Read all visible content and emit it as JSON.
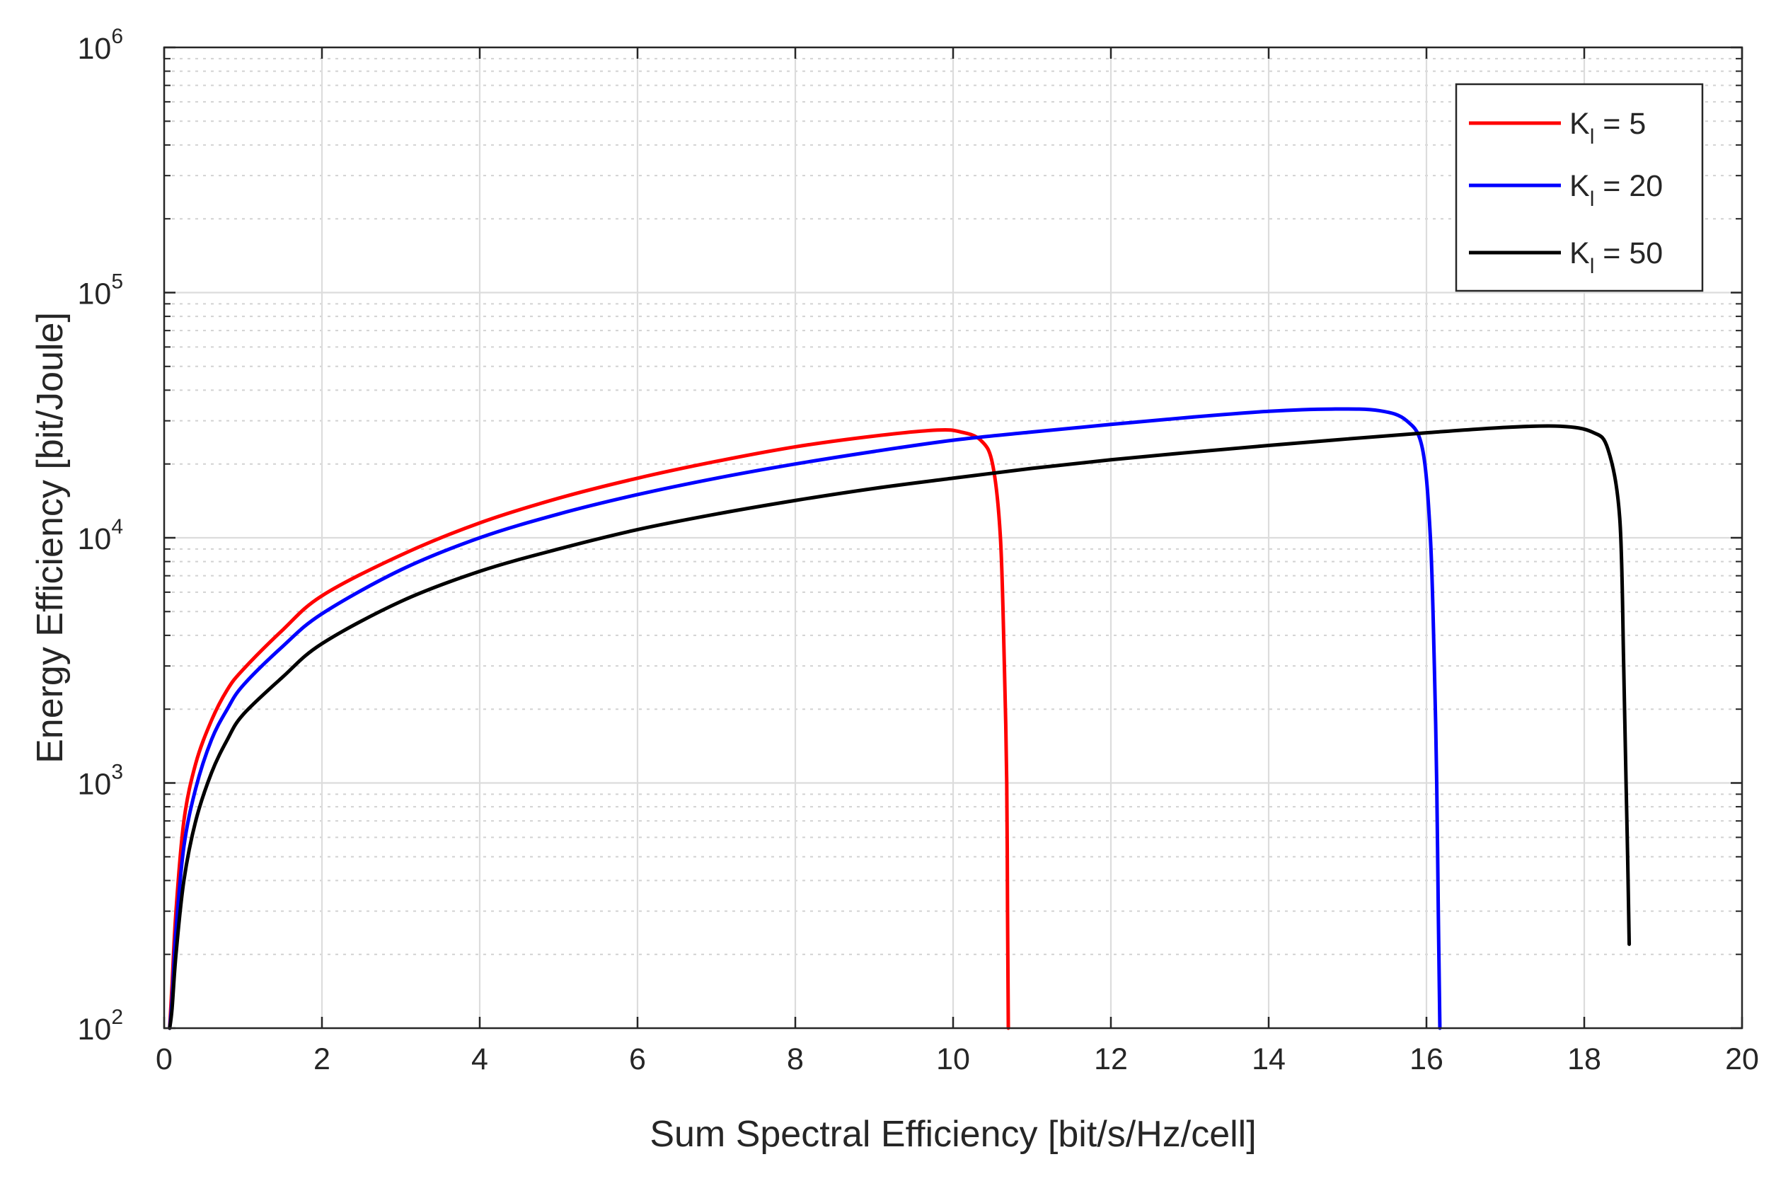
{
  "chart_data": {
    "type": "line",
    "title": "",
    "xlabel": "Sum Spectral Efficiency [bit/s/Hz/cell]",
    "ylabel": "Energy Efficiency [bit/Joule]",
    "xlim": [
      0,
      20
    ],
    "ylim": [
      100,
      1000000
    ],
    "yscale": "log",
    "grid": true,
    "legend_position": "top-right",
    "x_ticks": [
      "0",
      "2",
      "4",
      "6",
      "8",
      "10",
      "12",
      "14",
      "16",
      "18",
      "20"
    ],
    "y_ticks": [
      {
        "base": "10",
        "exp": "2"
      },
      {
        "base": "10",
        "exp": "3"
      },
      {
        "base": "10",
        "exp": "4"
      },
      {
        "base": "10",
        "exp": "5"
      },
      {
        "base": "10",
        "exp": "6"
      }
    ],
    "series": [
      {
        "name": "K_l = 5",
        "legend": {
          "prefix": "K",
          "sub": "l",
          "suffix": " = 5"
        },
        "color": "#ff0000",
        "points": [
          [
            0.07,
            100
          ],
          [
            0.1,
            150
          ],
          [
            0.15,
            300
          ],
          [
            0.25,
            700
          ],
          [
            0.4,
            1200
          ],
          [
            0.6,
            1800
          ],
          [
            0.8,
            2400
          ],
          [
            1,
            2900
          ],
          [
            1.5,
            4200
          ],
          [
            2,
            5800
          ],
          [
            3,
            8500
          ],
          [
            4,
            11500
          ],
          [
            5,
            14500
          ],
          [
            6,
            17500
          ],
          [
            7,
            20500
          ],
          [
            8,
            23500
          ],
          [
            9,
            26000
          ],
          [
            9.8,
            27500
          ],
          [
            10.1,
            27000
          ],
          [
            10.35,
            25000
          ],
          [
            10.5,
            20000
          ],
          [
            10.6,
            10000
          ],
          [
            10.65,
            3000
          ],
          [
            10.68,
            1000
          ],
          [
            10.69,
            300
          ],
          [
            10.7,
            100
          ]
        ]
      },
      {
        "name": "K_l = 20",
        "legend": {
          "prefix": "K",
          "sub": "l",
          "suffix": " = 20"
        },
        "color": "#0000ff",
        "points": [
          [
            0.07,
            100
          ],
          [
            0.1,
            130
          ],
          [
            0.15,
            250
          ],
          [
            0.25,
            550
          ],
          [
            0.4,
            950
          ],
          [
            0.6,
            1500
          ],
          [
            0.8,
            2000
          ],
          [
            1,
            2500
          ],
          [
            1.5,
            3600
          ],
          [
            2,
            4900
          ],
          [
            3,
            7400
          ],
          [
            4,
            10000
          ],
          [
            5,
            12500
          ],
          [
            6,
            15000
          ],
          [
            7,
            17500
          ],
          [
            8,
            20000
          ],
          [
            9,
            22500
          ],
          [
            10,
            25000
          ],
          [
            11,
            27000
          ],
          [
            12,
            29000
          ],
          [
            13,
            31000
          ],
          [
            14,
            32800
          ],
          [
            14.8,
            33500
          ],
          [
            15.4,
            33000
          ],
          [
            15.75,
            30000
          ],
          [
            15.95,
            23000
          ],
          [
            16.05,
            10000
          ],
          [
            16.1,
            3000
          ],
          [
            16.13,
            1000
          ],
          [
            16.15,
            300
          ],
          [
            16.17,
            100
          ]
        ]
      },
      {
        "name": "K_l = 50",
        "legend": {
          "prefix": "K",
          "sub": "l",
          "suffix": " = 50"
        },
        "color": "#000000",
        "points": [
          [
            0.07,
            100
          ],
          [
            0.1,
            120
          ],
          [
            0.15,
            200
          ],
          [
            0.25,
            400
          ],
          [
            0.4,
            700
          ],
          [
            0.6,
            1100
          ],
          [
            0.8,
            1500
          ],
          [
            1,
            1900
          ],
          [
            1.5,
            2700
          ],
          [
            2,
            3700
          ],
          [
            3,
            5500
          ],
          [
            4,
            7300
          ],
          [
            5,
            9000
          ],
          [
            6,
            10800
          ],
          [
            7,
            12500
          ],
          [
            8,
            14200
          ],
          [
            9,
            15900
          ],
          [
            10,
            17500
          ],
          [
            11,
            19200
          ],
          [
            12,
            20800
          ],
          [
            13,
            22300
          ],
          [
            14,
            23800
          ],
          [
            15,
            25300
          ],
          [
            16,
            26800
          ],
          [
            17,
            28200
          ],
          [
            17.7,
            28500
          ],
          [
            18.1,
            27000
          ],
          [
            18.3,
            23000
          ],
          [
            18.45,
            12000
          ],
          [
            18.5,
            3000
          ],
          [
            18.53,
            1000
          ],
          [
            18.55,
            500
          ],
          [
            18.57,
            220
          ]
        ]
      }
    ]
  }
}
